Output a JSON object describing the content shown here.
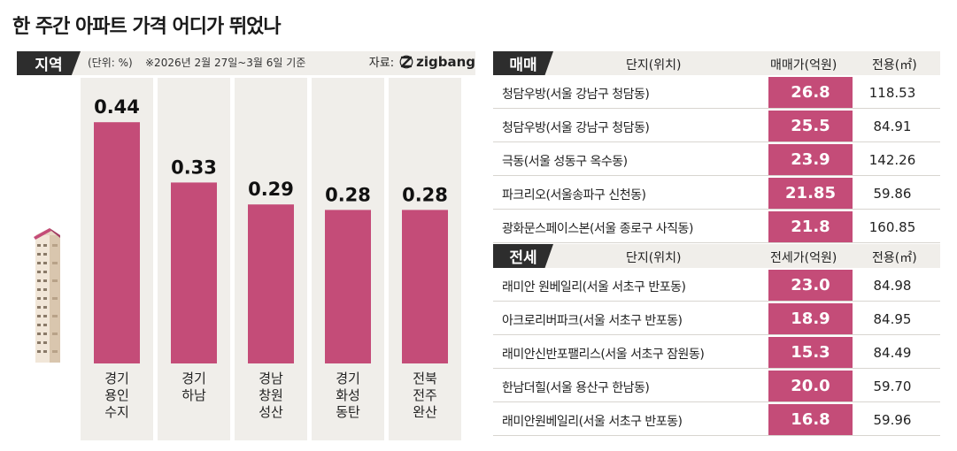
{
  "title": "한 주간 아파트 가격 어디가 뛰었나",
  "region": {
    "tag": "지역",
    "unit": "(단위: %)",
    "basis": "※2026년 2월 27일~3월 6일 기준",
    "source_label": "자료:",
    "source_name": "zigbang"
  },
  "chart_data": {
    "type": "bar",
    "categories": [
      "경기\n용인\n수지",
      "경기\n하남",
      "경남\n창원\n성산",
      "경기\n화성\n동탄",
      "전북\n전주\n완산"
    ],
    "values": [
      0.44,
      0.33,
      0.29,
      0.28,
      0.28
    ],
    "value_labels": [
      "0.44",
      "0.33",
      "0.29",
      "0.28",
      "0.28"
    ],
    "ylim": [
      0,
      0.5
    ],
    "bar_color": "#c44c78"
  },
  "sale": {
    "tag": "매매",
    "col_name": "단지(위치)",
    "col_price": "매매가(억원)",
    "col_area": "전용(㎡)",
    "rows": [
      {
        "name": "청담우방(서울 강남구 청담동)",
        "price": "26.8",
        "area": "118.53"
      },
      {
        "name": "청담우방(서울 강남구 청담동)",
        "price": "25.5",
        "area": "84.91"
      },
      {
        "name": "극동(서울 성동구 옥수동)",
        "price": "23.9",
        "area": "142.26"
      },
      {
        "name": "파크리오(서울송파구 신천동)",
        "price": "21.85",
        "area": "59.86"
      },
      {
        "name": "광화문스페이스본(서울 종로구 사직동)",
        "price": "21.8",
        "area": "160.85"
      }
    ]
  },
  "jeonse": {
    "tag": "전세",
    "col_name": "단지(위치)",
    "col_price": "전세가(억원)",
    "col_area": "전용(㎡)",
    "rows": [
      {
        "name": "래미안 원베일리(서울 서초구 반포동)",
        "price": "23.0",
        "area": "84.98"
      },
      {
        "name": "아크로리버파크(서울 서초구 반포동)",
        "price": "18.9",
        "area": "84.95"
      },
      {
        "name": "래미안신반포팰리스(서울 서초구 잠원동)",
        "price": "15.3",
        "area": "84.49"
      },
      {
        "name": "한남더힐(서울 용산구 한남동)",
        "price": "20.0",
        "area": "59.70"
      },
      {
        "name": "래미안원베일리(서울 서초구 반포동)",
        "price": "16.8",
        "area": "59.96"
      }
    ]
  },
  "colors": {
    "accent": "#c44c78",
    "dark_tag": "#2d2d2d",
    "band": "#f0eeea"
  }
}
